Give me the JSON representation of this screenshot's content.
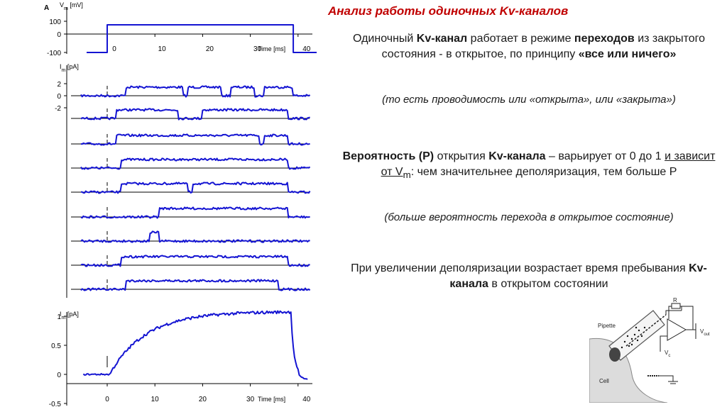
{
  "title": "Анализ работы одиночных Kv-каналов",
  "text": {
    "p1": {
      "t1": "Одиночный ",
      "b1": "Kv-канал",
      "t2": " работает в режиме ",
      "b2": "переходов",
      "t3": " из закрытого состояния - в открытое, по принципу ",
      "b3": "«все или ничего»"
    },
    "p2": "(то есть проводимость или «открыта», или «закрыта»)",
    "p3": {
      "b1": "Вероятность (Р)",
      "t1": " открытия ",
      "b2": "Kv-канала",
      "t2": " – варьирует от 0 до 1 ",
      "u1": "и зависит от V",
      "u1sub": "m",
      "t3": ": чем значительнее деполяризация, тем больше Р"
    },
    "p4": "(больше вероятность перехода в открытое состояние)",
    "p5": {
      "t1": "При увеличении деполяризации возрастает время пребывания ",
      "b1": "Kv-канала",
      "t2": " в открытом состоянии"
    }
  },
  "figure": {
    "panel_letter": "A",
    "voltage": {
      "ylabel": "V",
      "ylabel_sub": "m",
      "ylabel_unit": " [mV]",
      "yticks": [
        "100",
        "0",
        "-100"
      ],
      "xticks": [
        "0",
        "10",
        "20",
        "30",
        "40"
      ],
      "xlabel": "Time [ms]",
      "protocol": {
        "hold_mv": -100,
        "step_mv": 50,
        "step_on_ms": 0,
        "step_off_ms": 39
      }
    },
    "single": {
      "ylabel": "I",
      "ylabel_sub": "m",
      "ylabel_unit": " [pA]",
      "yticks": [
        "2",
        "0",
        "-2"
      ],
      "open_level_pa": 1.4,
      "sweeps": [
        {
          "name": "sweep-1",
          "open_ms": [
            [
              4,
              16
            ],
            [
              17,
              24
            ],
            [
              26,
              31
            ],
            [
              33,
              39
            ]
          ]
        },
        {
          "name": "sweep-2",
          "open_ms": [
            [
              2,
              15
            ],
            [
              20,
              38
            ]
          ]
        },
        {
          "name": "sweep-3",
          "open_ms": [
            [
              2,
              32
            ],
            [
              33,
              38
            ]
          ]
        },
        {
          "name": "sweep-4",
          "open_ms": [
            [
              3,
              38
            ]
          ]
        },
        {
          "name": "sweep-5",
          "open_ms": [
            [
              3,
              17
            ],
            [
              18,
              38
            ]
          ]
        },
        {
          "name": "sweep-6",
          "open_ms": [
            [
              11,
              38
            ]
          ]
        },
        {
          "name": "sweep-7",
          "open_ms": [
            [
              9,
              11
            ]
          ]
        },
        {
          "name": "sweep-8",
          "open_ms": [
            [
              3,
              38
            ]
          ]
        },
        {
          "name": "sweep-9",
          "open_ms": [
            [
              4,
              36
            ]
          ]
        }
      ]
    },
    "ensemble": {
      "ylabel": "I",
      "ylabel_sub": "m",
      "ylabel_unit": " [pA]",
      "yticks": [
        "1",
        "0.5",
        "0",
        "-0.5"
      ],
      "xticks": [
        "0",
        "10",
        "20",
        "30",
        "40"
      ],
      "xlabel": "Time [ms]"
    },
    "circuit": {
      "pipette": "Pipette",
      "cell": "Cell",
      "resistor": "R",
      "vout": "V",
      "vout_sub": "out",
      "vc": "V",
      "vc_sub": "c"
    }
  }
}
